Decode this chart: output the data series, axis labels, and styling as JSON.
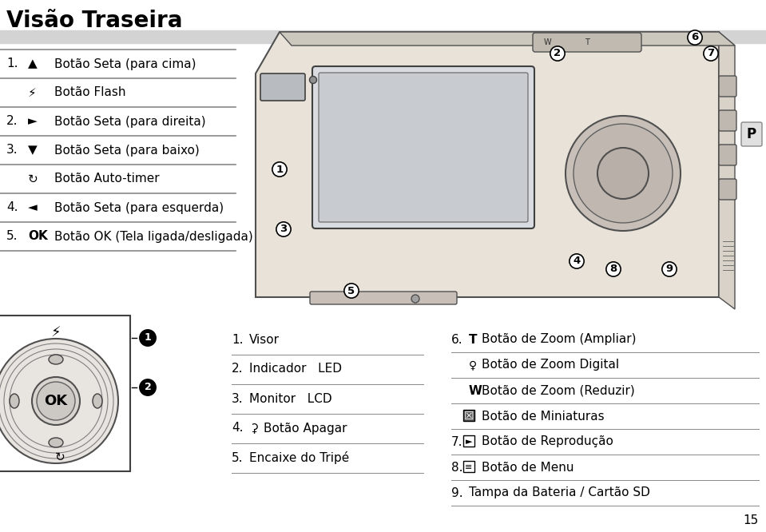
{
  "title": "Visão Traseira",
  "bg_color": "#ffffff",
  "header_bar_color": "#d3d3d3",
  "left_table": [
    {
      "num": "1.",
      "icon": "▲",
      "text": "Botão Seta (para cima)",
      "bold_num": true
    },
    {
      "num": "",
      "icon": "⚡",
      "text": "Botão Flash",
      "bold_num": false
    },
    {
      "num": "2.",
      "icon": "►",
      "text": "Botão Seta (para direita)",
      "bold_num": true
    },
    {
      "num": "3.",
      "icon": "▼",
      "text": "Botão Seta (para baixo)",
      "bold_num": true
    },
    {
      "num": "",
      "icon": "↻",
      "text": "Botão Auto-timer",
      "bold_num": false
    },
    {
      "num": "4.",
      "icon": "◄",
      "text": "Botão Seta (para esquerda)",
      "bold_num": true
    },
    {
      "num": "5.",
      "icon": "OK",
      "text": "Botão OK (Tela ligada/desligada)",
      "bold_num": true,
      "bold_icon": true
    }
  ],
  "bottom_left_list": [
    {
      "num": "1.",
      "icon": "",
      "text": "Visor"
    },
    {
      "num": "2.",
      "icon": "",
      "text": "Indicador   LED"
    },
    {
      "num": "3.",
      "icon": "",
      "text": "Monitor   LCD"
    },
    {
      "num": "4.",
      "icon": "⚳",
      "text": "Botão Apagar"
    },
    {
      "num": "5.",
      "icon": "",
      "text": "Encaixe do Tripé"
    }
  ],
  "bottom_right_list": [
    {
      "num": "6.",
      "icon": "T",
      "text": "Botão de Zoom (Ampliar)",
      "bold_icon": true
    },
    {
      "num": "",
      "icon": "♀",
      "text": "Botão de Zoom Digital",
      "bold_icon": false
    },
    {
      "num": "",
      "icon": "W",
      "text": "Botão de Zoom (Reduzir)",
      "bold_icon": true
    },
    {
      "num": "",
      "icon": "☒",
      "text": "Botão de Miniaturas",
      "bold_icon": false
    },
    {
      "num": "7.",
      "icon": "►□",
      "text": "Botão de Reprodução",
      "bold_icon": false
    },
    {
      "num": "8.",
      "icon": "≡□",
      "text": "Botão de Menu",
      "bold_icon": false
    },
    {
      "num": "9.",
      "icon": "",
      "text": "Tampa da Bateria / Cartão SD",
      "bold_icon": false
    }
  ],
  "page_num": "15",
  "P_label": "P"
}
